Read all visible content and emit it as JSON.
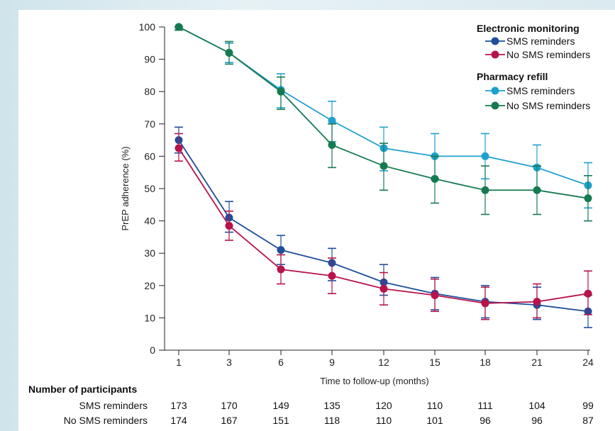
{
  "chart_data": {
    "type": "line",
    "xlabel": "Time to follow-up (months)",
    "ylabel": "PrEP adherence (%)",
    "x": [
      1,
      3,
      6,
      9,
      12,
      15,
      18,
      21,
      24
    ],
    "x_tick_labels": [
      "1",
      "3",
      "6",
      "9",
      "12",
      "15",
      "18",
      "21",
      "24"
    ],
    "ylim": [
      0,
      100
    ],
    "y_ticks": [
      0,
      10,
      20,
      30,
      40,
      50,
      60,
      70,
      80,
      90,
      100
    ],
    "grid": false,
    "legend_position": "top-right",
    "legend_groups": [
      {
        "title": "Electronic monitoring",
        "series_index": [
          0,
          1
        ]
      },
      {
        "title": "Pharmacy refill",
        "series_index": [
          2,
          3
        ]
      }
    ],
    "series": [
      {
        "name": "SMS reminders",
        "group": "Electronic monitoring",
        "color": "#1f4e9c",
        "values": [
          65,
          41,
          31,
          27,
          21,
          17.5,
          15,
          14,
          12
        ],
        "err_low": [
          61,
          36.5,
          26.5,
          21.5,
          17,
          12.5,
          10,
          9.5,
          7
        ],
        "err_high": [
          69,
          46,
          35.5,
          31.5,
          26.5,
          22.5,
          20,
          19.5,
          17
        ]
      },
      {
        "name": "No SMS reminders",
        "group": "Electronic monitoring",
        "color": "#b7124a",
        "values": [
          62.5,
          38.5,
          25,
          23,
          19,
          17,
          14.5,
          15,
          17.5
        ],
        "err_low": [
          58.5,
          34,
          20.5,
          17.5,
          14,
          12,
          9.5,
          10,
          11
        ],
        "err_high": [
          67,
          43,
          29.5,
          28.5,
          24,
          22,
          19.5,
          20.5,
          24.5
        ]
      },
      {
        "name": "SMS reminders",
        "group": "Pharmacy refill",
        "color": "#1ea0cf",
        "values": [
          100,
          92,
          80.5,
          71,
          62.5,
          60,
          60,
          56.5,
          51
        ],
        "err_low": [
          99,
          89,
          75,
          64.5,
          55.5,
          53,
          53,
          49.5,
          44
        ],
        "err_high": [
          100,
          95,
          85.5,
          77,
          69,
          67,
          67,
          63.5,
          58
        ]
      },
      {
        "name": "No SMS reminders",
        "group": "Pharmacy refill",
        "color": "#167a50",
        "values": [
          100,
          92,
          80,
          63.5,
          57,
          53,
          49.5,
          49.5,
          47
        ],
        "err_low": [
          99,
          88.5,
          74.5,
          56.5,
          49.5,
          45.5,
          42,
          42,
          40
        ],
        "err_high": [
          100,
          95.5,
          84.5,
          70,
          64,
          60,
          57,
          57,
          54
        ]
      }
    ]
  },
  "participants": {
    "title": "Number of participants",
    "rows": [
      {
        "label": "SMS reminders",
        "values": [
          "173",
          "170",
          "149",
          "135",
          "120",
          "110",
          "111",
          "104",
          "99"
        ]
      },
      {
        "label": "No SMS reminders",
        "values": [
          "174",
          "167",
          "151",
          "118",
          "110",
          "101",
          "96",
          "96",
          "87"
        ]
      }
    ]
  }
}
